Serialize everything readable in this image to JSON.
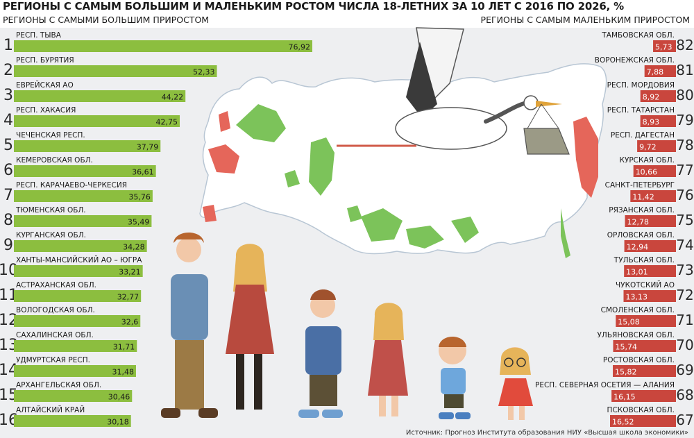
{
  "title": "РЕГИОНЫ С САМЫМ БОЛЬШИМ И МАЛЕНЬКИМ РОСТОМ ЧИСЛА 18-ЛЕТНИХ ЗА 10 ЛЕТ С 2016 ПО 2026, %",
  "subtitle_left": "РЕГИОНЫ С САМЫМИ БОЛЬШИМ ПРИРОСТОМ",
  "subtitle_right": "РЕГИОНЫ С САМЫМ МАЛЕНЬКИМ ПРИРОСТОМ",
  "source": "Источник: Прогноз Института образования НИУ «Высшая школа экономики»",
  "colors": {
    "green": "#8cbe3f",
    "red": "#c9463d",
    "panel": "#eeeff1",
    "map_land": "#ffffff",
    "map_green": "#7cc35a",
    "map_red": "#e5665a"
  },
  "chart_data": [
    {
      "type": "bar",
      "orientation": "horizontal",
      "title": "РЕГИОНЫ С САМЫМИ БОЛЬШИМ ПРИРОСТОМ",
      "ranks": [
        "1",
        "2",
        "3",
        "4",
        "5",
        "6",
        "7",
        "8",
        "9",
        "10",
        "11",
        "12",
        "13",
        "14",
        "15",
        "16"
      ],
      "categories": [
        "РЕСП. ТЫВА",
        "РЕСП. БУРЯТИЯ",
        "ЕВРЕЙСКАЯ АО",
        "РЕСП. ХАКАСИЯ",
        "ЧЕЧЕНСКАЯ РЕСП.",
        "КЕМЕРОВСКАЯ ОБЛ.",
        "РЕСП. КАРАЧАЕВО-ЧЕРКЕСИЯ",
        "ТЮМЕНСКАЯ ОБЛ.",
        "КУРГАНСКАЯ ОБЛ.",
        "ХАНТЫ-МАНСИЙСКИЙ АО – ЮГРА",
        "АСТРАХАНСКАЯ ОБЛ.",
        "ВОЛОГОДСКАЯ ОБЛ.",
        "САХАЛИНСКАЯ ОБЛ.",
        "УДМУРТСКАЯ РЕСП.",
        "АРХАНГЕЛЬСКАЯ ОБЛ.",
        "АЛТАЙСКИЙ КРАЙ"
      ],
      "values": [
        76.92,
        52.33,
        44.22,
        42.75,
        37.79,
        36.61,
        35.76,
        35.49,
        34.28,
        33.21,
        32.77,
        32.6,
        31.71,
        31.48,
        30.46,
        30.18
      ],
      "labels": [
        "76,92",
        "52,33",
        "44,22",
        "42,75",
        "37,79",
        "36,61",
        "35,76",
        "35,49",
        "34,28",
        "33,21",
        "32,77",
        "32,6",
        "31,71",
        "31,48",
        "30,46",
        "30,18"
      ],
      "xlim": [
        0,
        76.92
      ],
      "unit": "%"
    },
    {
      "type": "bar",
      "orientation": "horizontal",
      "title": "РЕГИОНЫ С САМЫМ МАЛЕНЬКИМ ПРИРОСТОМ",
      "ranks": [
        "82",
        "81",
        "80",
        "79",
        "78",
        "77",
        "76",
        "75",
        "74",
        "73",
        "72",
        "71",
        "70",
        "69",
        "68",
        "67"
      ],
      "categories": [
        "ТАМБОВСКАЯ ОБЛ.",
        "ВОРОНЕЖСКАЯ ОБЛ.",
        "РЕСП. МОРДОВИЯ",
        "РЕСП. ТАТАРСТАН",
        "РЕСП. ДАГЕСТАН",
        "КУРСКАЯ ОБЛ.",
        "САНКТ-ПЕТЕРБУРГ",
        "РЯЗАНСКАЯ ОБЛ.",
        "ОРЛОВСКАЯ ОБЛ.",
        "ТУЛЬСКАЯ ОБЛ.",
        "ЧУКОТСКИЙ АО",
        "СМОЛЕНСКАЯ ОБЛ.",
        "УЛЬЯНОВСКАЯ ОБЛ.",
        "РОСТОВСКАЯ ОБЛ.",
        "РЕСП. СЕВЕРНАЯ ОСЕТИЯ — АЛАНИЯ",
        "ПСКОВСКАЯ ОБЛ."
      ],
      "values": [
        5.73,
        7.88,
        8.92,
        8.93,
        9.72,
        10.66,
        11.42,
        12.78,
        12.94,
        13.01,
        13.13,
        15.08,
        15.74,
        15.82,
        16.15,
        16.52
      ],
      "labels": [
        "5,73",
        "7,88",
        "8,92",
        "8,93",
        "9,72",
        "10,66",
        "11,42",
        "12,78",
        "12,94",
        "13,01",
        "13,13",
        "15,08",
        "15,74",
        "15,82",
        "16,15",
        "16,52"
      ],
      "xlim": [
        0,
        16.52
      ],
      "unit": "%"
    }
  ]
}
